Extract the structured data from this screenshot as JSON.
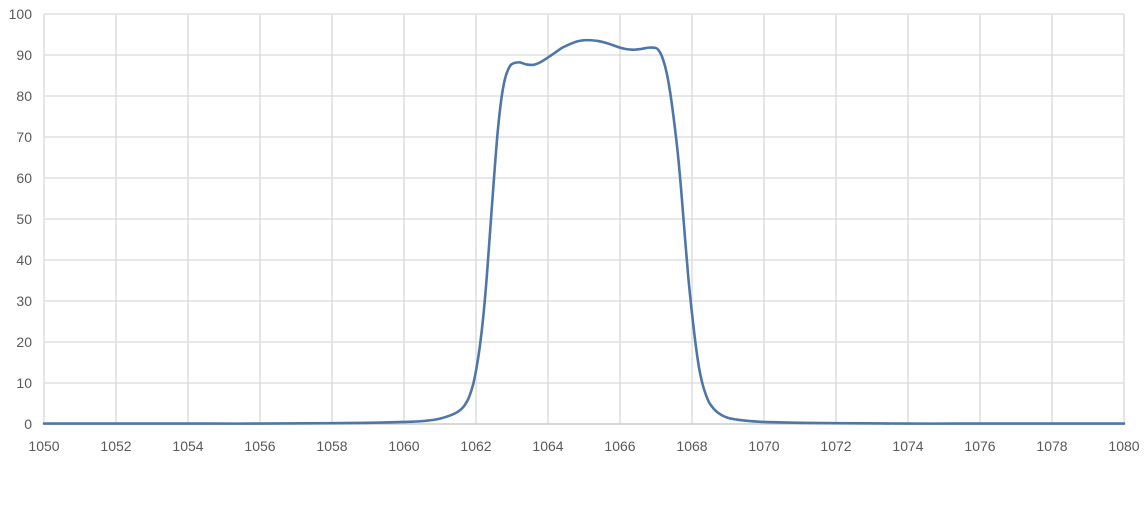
{
  "chart_data": {
    "type": "line",
    "title": "",
    "xlabel": "",
    "ylabel": "",
    "xlim": [
      1050,
      1080
    ],
    "ylim": [
      0,
      100
    ],
    "x_ticks": [
      1050,
      1052,
      1054,
      1056,
      1058,
      1060,
      1062,
      1064,
      1066,
      1068,
      1070,
      1072,
      1074,
      1076,
      1078,
      1080
    ],
    "y_ticks": [
      0,
      10,
      20,
      30,
      40,
      50,
      60,
      70,
      80,
      90,
      100
    ],
    "grid": true,
    "legend": "none",
    "series": [
      {
        "color": "#4f76a8",
        "points": [
          [
            1050,
            0.1
          ],
          [
            1052,
            0.1
          ],
          [
            1054,
            0.1
          ],
          [
            1056,
            0.1
          ],
          [
            1058,
            0.2
          ],
          [
            1059,
            0.3
          ],
          [
            1060,
            0.5
          ],
          [
            1060.5,
            0.7
          ],
          [
            1061,
            1.3
          ],
          [
            1061.5,
            3.0
          ],
          [
            1061.75,
            5.5
          ],
          [
            1061.9,
            9.0
          ],
          [
            1062,
            13.0
          ],
          [
            1062.1,
            18.5
          ],
          [
            1062.2,
            26.0
          ],
          [
            1062.3,
            36.0
          ],
          [
            1062.4,
            48.0
          ],
          [
            1062.5,
            60.0
          ],
          [
            1062.6,
            71.0
          ],
          [
            1062.7,
            79.0
          ],
          [
            1062.8,
            84.0
          ],
          [
            1062.9,
            86.6
          ],
          [
            1063.0,
            87.8
          ],
          [
            1063.2,
            88.2
          ],
          [
            1063.4,
            87.7
          ],
          [
            1063.6,
            87.6
          ],
          [
            1063.8,
            88.3
          ],
          [
            1064.0,
            89.4
          ],
          [
            1064.2,
            90.6
          ],
          [
            1064.4,
            91.8
          ],
          [
            1064.6,
            92.6
          ],
          [
            1064.8,
            93.3
          ],
          [
            1065.0,
            93.6
          ],
          [
            1065.2,
            93.6
          ],
          [
            1065.4,
            93.4
          ],
          [
            1065.6,
            93.0
          ],
          [
            1065.8,
            92.4
          ],
          [
            1066.0,
            91.8
          ],
          [
            1066.2,
            91.4
          ],
          [
            1066.4,
            91.3
          ],
          [
            1066.6,
            91.5
          ],
          [
            1066.8,
            91.8
          ],
          [
            1067.0,
            91.7
          ],
          [
            1067.1,
            90.8
          ],
          [
            1067.2,
            88.8
          ],
          [
            1067.3,
            85.5
          ],
          [
            1067.4,
            80.5
          ],
          [
            1067.5,
            74.0
          ],
          [
            1067.6,
            66.5
          ],
          [
            1067.7,
            57.0
          ],
          [
            1067.8,
            46.0
          ],
          [
            1067.9,
            35.5
          ],
          [
            1068.0,
            27.0
          ],
          [
            1068.1,
            19.5
          ],
          [
            1068.2,
            13.5
          ],
          [
            1068.3,
            9.5
          ],
          [
            1068.4,
            6.8
          ],
          [
            1068.5,
            4.9
          ],
          [
            1068.7,
            2.9
          ],
          [
            1069.0,
            1.5
          ],
          [
            1069.5,
            0.8
          ],
          [
            1070,
            0.5
          ],
          [
            1071,
            0.3
          ],
          [
            1072,
            0.2
          ],
          [
            1074,
            0.1
          ],
          [
            1076,
            0.1
          ],
          [
            1078,
            0.1
          ],
          [
            1080,
            0.1
          ]
        ]
      }
    ]
  }
}
